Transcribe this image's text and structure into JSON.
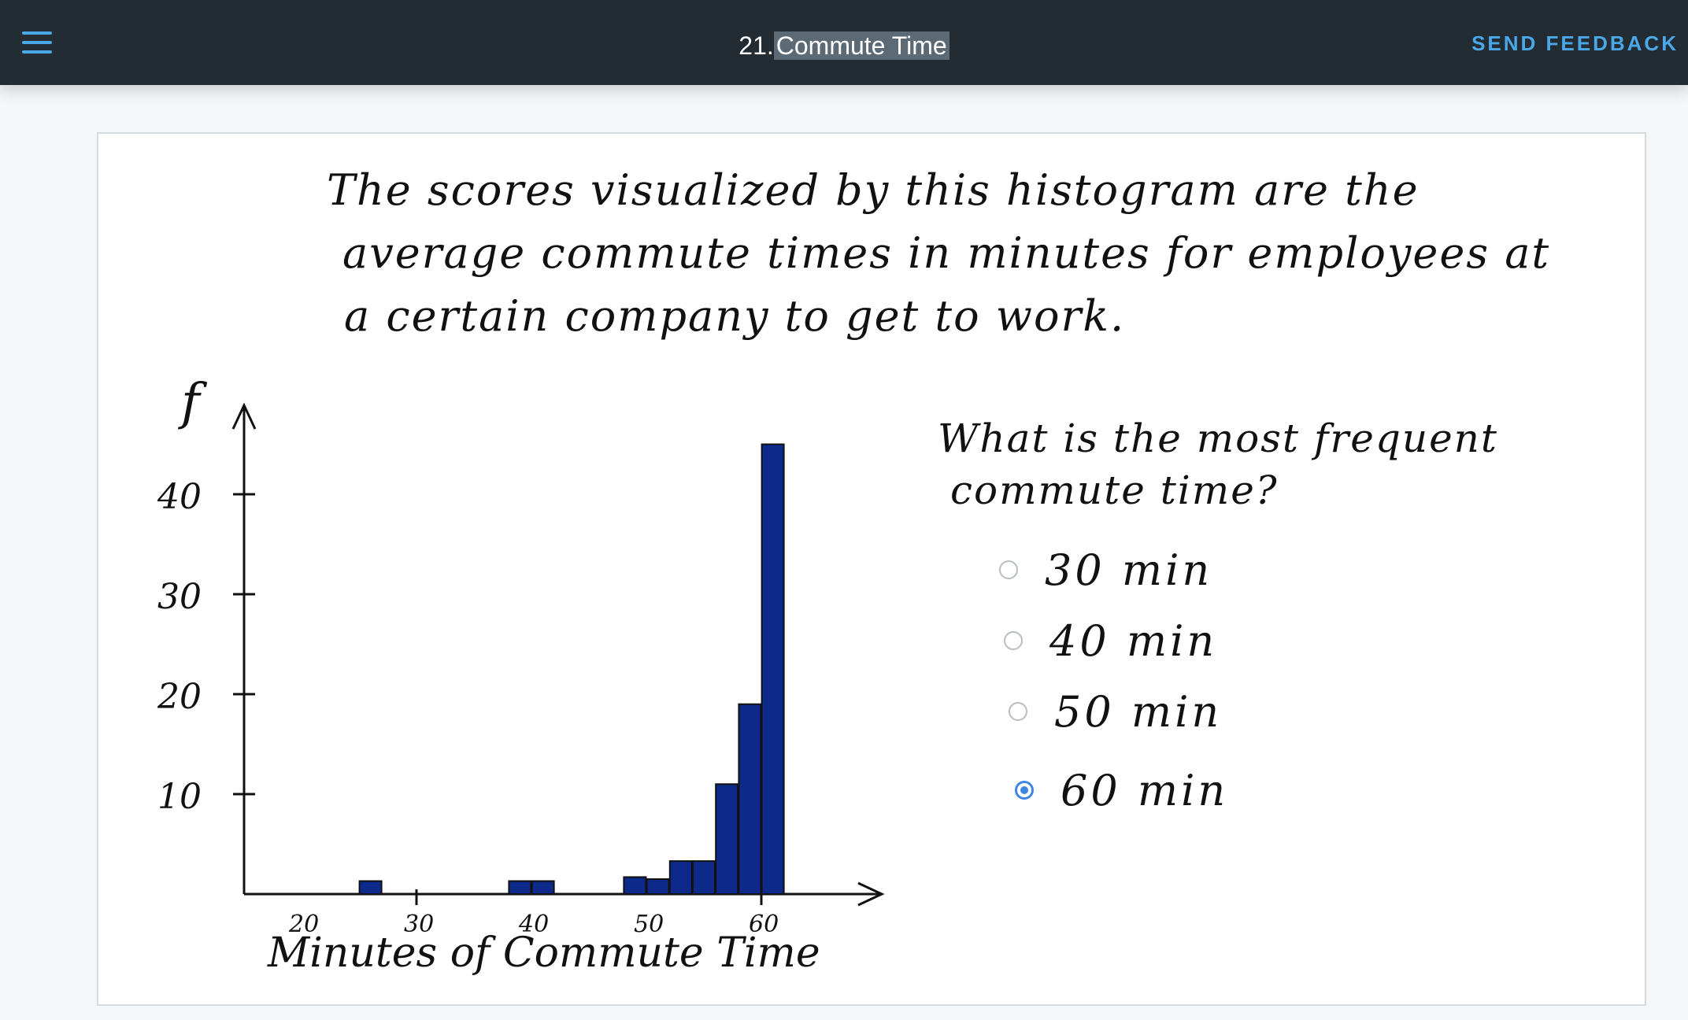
{
  "topbar": {
    "menu_icon": "hamburger-menu-icon",
    "title_number": "21.",
    "title_text": "Commute Time",
    "feedback_label": "SEND FEEDBACK",
    "accent_color": "#4aa8e8"
  },
  "prompt": {
    "line1": "The scores visualized by this histogram are the",
    "line2": "average commute times in minutes for employees at",
    "line3": "a certain company to get to work."
  },
  "question": {
    "line1": "What is the most frequent",
    "line2": "commute time?",
    "options": [
      {
        "label": "30 min",
        "selected": false
      },
      {
        "label": "40 min",
        "selected": false
      },
      {
        "label": "50 min",
        "selected": false
      },
      {
        "label": "60 min",
        "selected": true
      }
    ]
  },
  "chart_data": {
    "type": "bar",
    "xlabel": "Minutes of Commute Time",
    "ylabel": "f",
    "xticks": [
      "20",
      "30",
      "40",
      "50",
      "60"
    ],
    "yticks": [
      "10",
      "20",
      "30",
      "40"
    ],
    "ylim": [
      0,
      45
    ],
    "bar_color": "#0d2a8a",
    "bars": [
      {
        "x": 26,
        "value": 1.3
      },
      {
        "x": 39,
        "value": 1.3
      },
      {
        "x": 41,
        "value": 1.3
      },
      {
        "x": 49,
        "value": 1.7
      },
      {
        "x": 51,
        "value": 1.5
      },
      {
        "x": 53,
        "value": 3.3
      },
      {
        "x": 55,
        "value": 3.3
      },
      {
        "x": 57,
        "value": 11
      },
      {
        "x": 59,
        "value": 19
      },
      {
        "x": 61,
        "value": 45
      }
    ]
  }
}
